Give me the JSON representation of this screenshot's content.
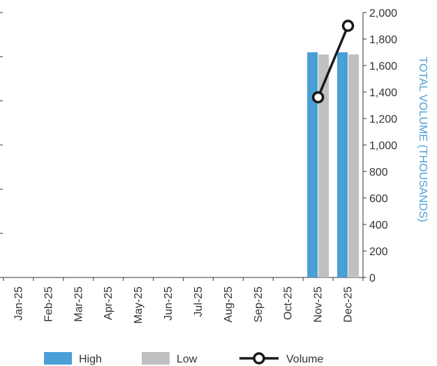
{
  "chart_data": {
    "type": "bar",
    "categories": [
      "Jan-25",
      "Feb-25",
      "Mar-25",
      "Apr-25",
      "May-25",
      "Jun-25",
      "Jul-25",
      "Aug-25",
      "Sep-25",
      "Oct-25",
      "Nov-25",
      "Dec-25"
    ],
    "series": [
      {
        "name": "High",
        "kind": "bar",
        "axis": "left",
        "color": "#4a9fd6",
        "values": [
          null,
          null,
          null,
          null,
          null,
          null,
          null,
          null,
          null,
          null,
          5.1,
          5.1
        ]
      },
      {
        "name": "Low",
        "kind": "bar",
        "axis": "left",
        "color": "#bfc0c2",
        "values": [
          null,
          null,
          null,
          null,
          null,
          null,
          null,
          null,
          null,
          null,
          5.05,
          5.05
        ]
      },
      {
        "name": "Volume",
        "kind": "line",
        "axis": "right",
        "color": "#1a1a1a",
        "values": [
          null,
          null,
          null,
          null,
          null,
          null,
          null,
          null,
          null,
          null,
          1360,
          1900
        ]
      }
    ],
    "left_axis": {
      "ylim": [
        0,
        6
      ],
      "ticks": [
        0,
        1,
        2,
        3,
        4,
        5,
        6
      ],
      "tick_labels_visible": false
    },
    "right_axis": {
      "ylim": [
        0,
        2000
      ],
      "ticks": [
        0,
        200,
        400,
        600,
        800,
        1000,
        1200,
        1400,
        1600,
        1800,
        2000
      ],
      "tick_labels": [
        "0",
        "200",
        "400",
        "600",
        "800",
        "1,000",
        "1,200",
        "1,400",
        "1,600",
        "1,800",
        "2,000"
      ],
      "label": "TOTAL VOLUME (THOUSANDS)",
      "label_color": "#4a9fd6"
    },
    "legend": {
      "position": "bottom",
      "items": [
        {
          "name": "High",
          "type": "bar",
          "color": "#4a9fd6"
        },
        {
          "name": "Low",
          "type": "bar",
          "color": "#bfc0c2"
        },
        {
          "name": "Volume",
          "type": "line-marker",
          "color": "#1a1a1a"
        }
      ]
    },
    "grid": false
  }
}
